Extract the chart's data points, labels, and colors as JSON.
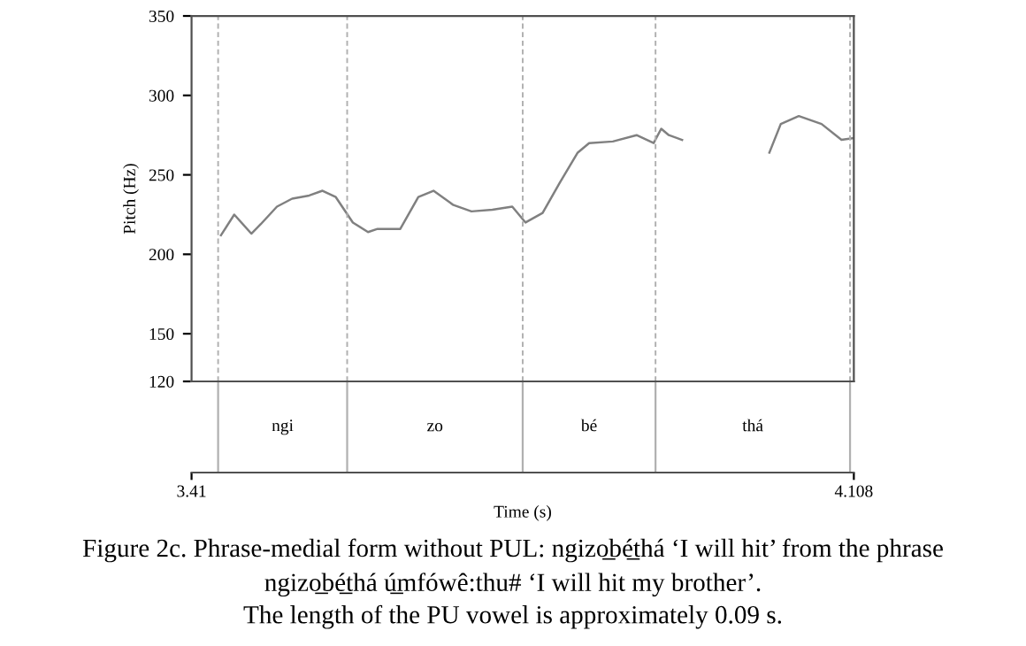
{
  "chart_data": {
    "type": "line",
    "xlabel": "Time (s)",
    "ylabel": "Pitch (Hz)",
    "xlim": [
      3.41,
      4.108
    ],
    "xticks": [
      3.41,
      4.108
    ],
    "ylim": [
      120,
      350
    ],
    "yticks": [
      120,
      150,
      200,
      250,
      300,
      350
    ],
    "grid": false,
    "legend": false,
    "marker": "none",
    "line_style": "solid",
    "series": [
      {
        "color": "#808080",
        "x": [
          3.441,
          3.455,
          3.473,
          3.483,
          3.5,
          3.516,
          3.534,
          3.548,
          3.562,
          3.58,
          3.596,
          3.606,
          3.63,
          3.649,
          3.665,
          3.686,
          3.705,
          3.727,
          3.748,
          3.762,
          3.78,
          3.798,
          3.817,
          3.829,
          3.854,
          3.879,
          3.897,
          3.905,
          3.913,
          3.927,
          3.97,
          4.019,
          4.031,
          4.05,
          4.074,
          4.095,
          4.107
        ],
        "values": [
          212,
          225,
          213,
          219,
          230,
          235,
          237,
          240,
          236,
          220,
          214,
          216,
          216,
          236,
          240,
          231,
          227,
          228,
          230,
          220,
          226,
          245,
          264,
          270,
          271,
          275,
          270,
          279,
          275,
          272,
          null,
          264,
          282,
          287,
          282,
          272,
          273
        ]
      }
    ],
    "ref_lines": [
      {
        "axis": "x",
        "value": 3.438,
        "color": "#b0b0b0",
        "line_style": "dashed"
      },
      {
        "axis": "x",
        "value": 3.574,
        "color": "#b0b0b0",
        "line_style": "dashed"
      },
      {
        "axis": "x",
        "value": 3.759,
        "color": "#b0b0b0",
        "line_style": "dashed"
      },
      {
        "axis": "x",
        "value": 3.899,
        "color": "#b0b0b0",
        "line_style": "dashed"
      },
      {
        "axis": "x",
        "value": 4.104,
        "color": "#b0b0b0",
        "line_style": "dashed"
      }
    ],
    "annotations": [
      "ngi",
      "zo",
      "bé",
      "thá",
      "Figure 2c. Phrase-medial form without PUL: ngizo̲bé̲thá ‘I will hit’ from the phrase",
      "ngizo̲bé̲thá ú̲mfówê:thu# ‘I will hit my brother’.",
      "The length of the PU vowel is approximately 0.09 s."
    ]
  }
}
